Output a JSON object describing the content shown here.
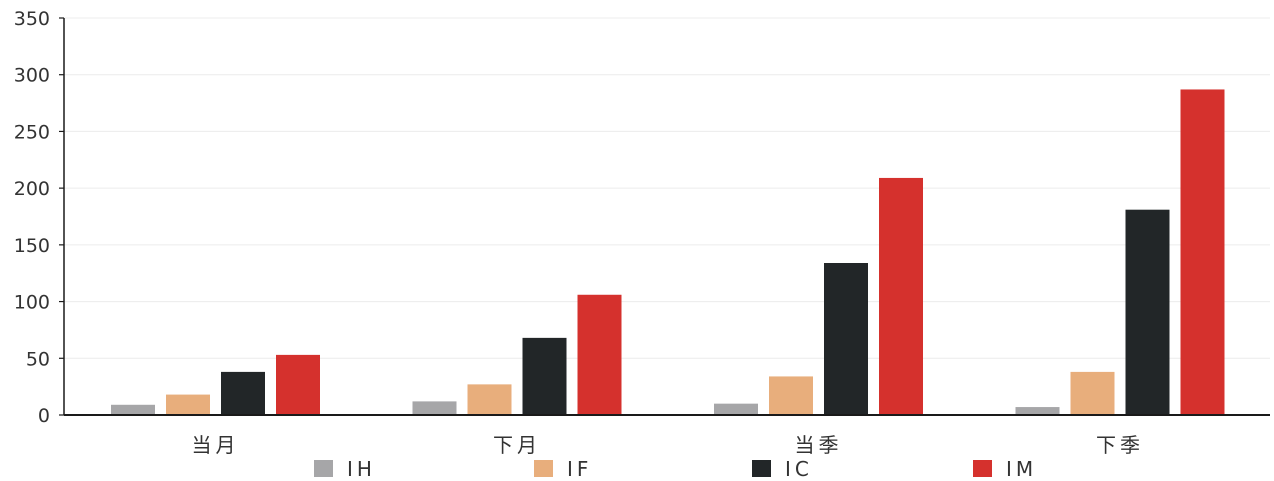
{
  "chart_data": {
    "type": "bar",
    "categories": [
      "当月",
      "下月",
      "当季",
      "下季"
    ],
    "series": [
      {
        "name": "IH",
        "color": "#a6a6a8",
        "values": [
          9,
          12,
          10,
          7
        ]
      },
      {
        "name": "IF",
        "color": "#e8ae7c",
        "values": [
          18,
          27,
          34,
          38
        ]
      },
      {
        "name": "IC",
        "color": "#222628",
        "values": [
          38,
          68,
          134,
          181
        ]
      },
      {
        "name": "IM",
        "color": "#d5312d",
        "values": [
          53,
          106,
          209,
          287
        ]
      }
    ],
    "ylim": [
      0,
      350
    ],
    "yticks": [
      0,
      50,
      100,
      150,
      200,
      250,
      300,
      350
    ],
    "grid": true,
    "legend_position": "bottom",
    "title": "",
    "xlabel": "",
    "ylabel": ""
  }
}
